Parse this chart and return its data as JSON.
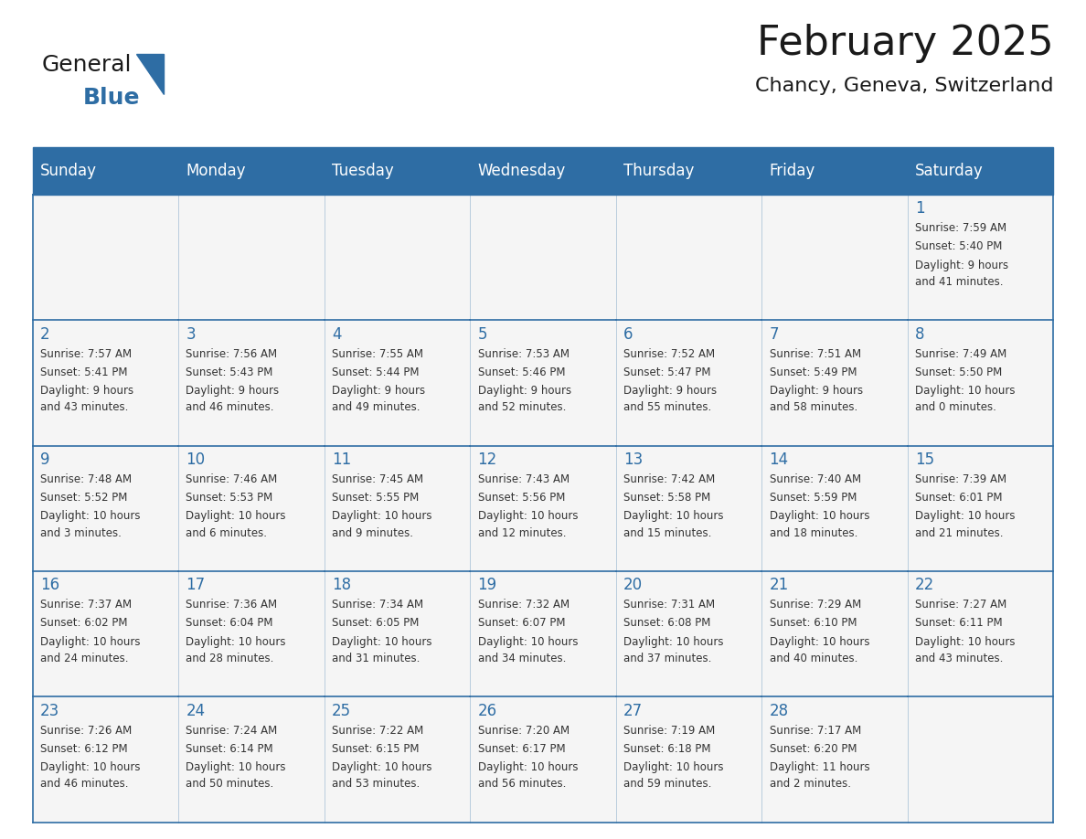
{
  "title": "February 2025",
  "subtitle": "Chancy, Geneva, Switzerland",
  "header_bg": "#2E6DA4",
  "header_text_color": "#FFFFFF",
  "border_color": "#2E6DA4",
  "day_number_color": "#2E6DA4",
  "text_color": "#333333",
  "cell_bg": "#F5F5F5",
  "days_of_week": [
    "Sunday",
    "Monday",
    "Tuesday",
    "Wednesday",
    "Thursday",
    "Friday",
    "Saturday"
  ],
  "calendar_data": [
    [
      null,
      null,
      null,
      null,
      null,
      null,
      {
        "day": "1",
        "sunrise": "7:59 AM",
        "sunset": "5:40 PM",
        "daylight_line1": "Daylight: 9 hours",
        "daylight_line2": "and 41 minutes."
      }
    ],
    [
      {
        "day": "2",
        "sunrise": "7:57 AM",
        "sunset": "5:41 PM",
        "daylight_line1": "Daylight: 9 hours",
        "daylight_line2": "and 43 minutes."
      },
      {
        "day": "3",
        "sunrise": "7:56 AM",
        "sunset": "5:43 PM",
        "daylight_line1": "Daylight: 9 hours",
        "daylight_line2": "and 46 minutes."
      },
      {
        "day": "4",
        "sunrise": "7:55 AM",
        "sunset": "5:44 PM",
        "daylight_line1": "Daylight: 9 hours",
        "daylight_line2": "and 49 minutes."
      },
      {
        "day": "5",
        "sunrise": "7:53 AM",
        "sunset": "5:46 PM",
        "daylight_line1": "Daylight: 9 hours",
        "daylight_line2": "and 52 minutes."
      },
      {
        "day": "6",
        "sunrise": "7:52 AM",
        "sunset": "5:47 PM",
        "daylight_line1": "Daylight: 9 hours",
        "daylight_line2": "and 55 minutes."
      },
      {
        "day": "7",
        "sunrise": "7:51 AM",
        "sunset": "5:49 PM",
        "daylight_line1": "Daylight: 9 hours",
        "daylight_line2": "and 58 minutes."
      },
      {
        "day": "8",
        "sunrise": "7:49 AM",
        "sunset": "5:50 PM",
        "daylight_line1": "Daylight: 10 hours",
        "daylight_line2": "and 0 minutes."
      }
    ],
    [
      {
        "day": "9",
        "sunrise": "7:48 AM",
        "sunset": "5:52 PM",
        "daylight_line1": "Daylight: 10 hours",
        "daylight_line2": "and 3 minutes."
      },
      {
        "day": "10",
        "sunrise": "7:46 AM",
        "sunset": "5:53 PM",
        "daylight_line1": "Daylight: 10 hours",
        "daylight_line2": "and 6 minutes."
      },
      {
        "day": "11",
        "sunrise": "7:45 AM",
        "sunset": "5:55 PM",
        "daylight_line1": "Daylight: 10 hours",
        "daylight_line2": "and 9 minutes."
      },
      {
        "day": "12",
        "sunrise": "7:43 AM",
        "sunset": "5:56 PM",
        "daylight_line1": "Daylight: 10 hours",
        "daylight_line2": "and 12 minutes."
      },
      {
        "day": "13",
        "sunrise": "7:42 AM",
        "sunset": "5:58 PM",
        "daylight_line1": "Daylight: 10 hours",
        "daylight_line2": "and 15 minutes."
      },
      {
        "day": "14",
        "sunrise": "7:40 AM",
        "sunset": "5:59 PM",
        "daylight_line1": "Daylight: 10 hours",
        "daylight_line2": "and 18 minutes."
      },
      {
        "day": "15",
        "sunrise": "7:39 AM",
        "sunset": "6:01 PM",
        "daylight_line1": "Daylight: 10 hours",
        "daylight_line2": "and 21 minutes."
      }
    ],
    [
      {
        "day": "16",
        "sunrise": "7:37 AM",
        "sunset": "6:02 PM",
        "daylight_line1": "Daylight: 10 hours",
        "daylight_line2": "and 24 minutes."
      },
      {
        "day": "17",
        "sunrise": "7:36 AM",
        "sunset": "6:04 PM",
        "daylight_line1": "Daylight: 10 hours",
        "daylight_line2": "and 28 minutes."
      },
      {
        "day": "18",
        "sunrise": "7:34 AM",
        "sunset": "6:05 PM",
        "daylight_line1": "Daylight: 10 hours",
        "daylight_line2": "and 31 minutes."
      },
      {
        "day": "19",
        "sunrise": "7:32 AM",
        "sunset": "6:07 PM",
        "daylight_line1": "Daylight: 10 hours",
        "daylight_line2": "and 34 minutes."
      },
      {
        "day": "20",
        "sunrise": "7:31 AM",
        "sunset": "6:08 PM",
        "daylight_line1": "Daylight: 10 hours",
        "daylight_line2": "and 37 minutes."
      },
      {
        "day": "21",
        "sunrise": "7:29 AM",
        "sunset": "6:10 PM",
        "daylight_line1": "Daylight: 10 hours",
        "daylight_line2": "and 40 minutes."
      },
      {
        "day": "22",
        "sunrise": "7:27 AM",
        "sunset": "6:11 PM",
        "daylight_line1": "Daylight: 10 hours",
        "daylight_line2": "and 43 minutes."
      }
    ],
    [
      {
        "day": "23",
        "sunrise": "7:26 AM",
        "sunset": "6:12 PM",
        "daylight_line1": "Daylight: 10 hours",
        "daylight_line2": "and 46 minutes."
      },
      {
        "day": "24",
        "sunrise": "7:24 AM",
        "sunset": "6:14 PM",
        "daylight_line1": "Daylight: 10 hours",
        "daylight_line2": "and 50 minutes."
      },
      {
        "day": "25",
        "sunrise": "7:22 AM",
        "sunset": "6:15 PM",
        "daylight_line1": "Daylight: 10 hours",
        "daylight_line2": "and 53 minutes."
      },
      {
        "day": "26",
        "sunrise": "7:20 AM",
        "sunset": "6:17 PM",
        "daylight_line1": "Daylight: 10 hours",
        "daylight_line2": "and 56 minutes."
      },
      {
        "day": "27",
        "sunrise": "7:19 AM",
        "sunset": "6:18 PM",
        "daylight_line1": "Daylight: 10 hours",
        "daylight_line2": "and 59 minutes."
      },
      {
        "day": "28",
        "sunrise": "7:17 AM",
        "sunset": "6:20 PM",
        "daylight_line1": "Daylight: 11 hours",
        "daylight_line2": "and 2 minutes."
      },
      null
    ]
  ],
  "logo_text1": "General",
  "logo_text2": "Blue",
  "logo_color1": "#1a1a1a",
  "logo_color2": "#2E6DA4",
  "logo_triangle_color": "#2E6DA4",
  "title_fontsize": 32,
  "subtitle_fontsize": 16,
  "header_fontsize": 12,
  "day_num_fontsize": 12,
  "cell_text_fontsize": 8.5
}
